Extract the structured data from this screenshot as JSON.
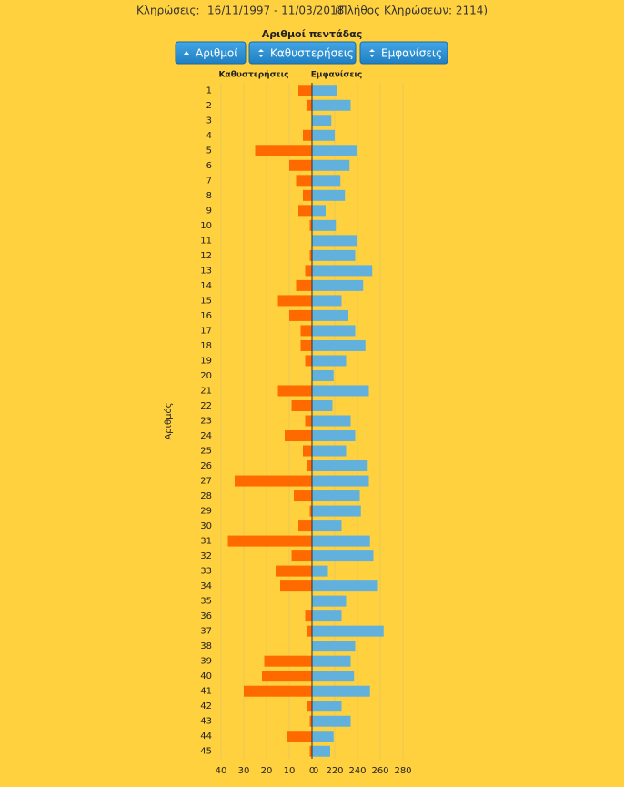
{
  "header": {
    "label": "Κληρώσεις:",
    "dates": "16/11/1997 - 11/03/2018",
    "count": "(Πλήθος Κληρώσεων: 2114)"
  },
  "buttons": [
    "Αριθμοί",
    "Καθυστερήσεις",
    "Εμφανίσεις"
  ],
  "chart_data": {
    "type": "butterfly_bar",
    "title": "Αριθμοί πεντάδας",
    "y_label": "Αριθμός",
    "categories": [
      "1",
      "2",
      "3",
      "4",
      "5",
      "6",
      "7",
      "8",
      "9",
      "10",
      "11",
      "12",
      "13",
      "14",
      "15",
      "16",
      "17",
      "18",
      "19",
      "20",
      "21",
      "22",
      "23",
      "24",
      "25",
      "26",
      "27",
      "28",
      "29",
      "30",
      "31",
      "32",
      "33",
      "34",
      "35",
      "36",
      "37",
      "38",
      "39",
      "40",
      "41",
      "42",
      "43",
      "44",
      "45"
    ],
    "series": [
      {
        "name": "Καθυστερήσεις",
        "color": "#ff6a00",
        "axis": "x",
        "values": [
          6,
          2,
          0,
          4,
          25,
          10,
          7,
          4,
          6,
          1,
          0,
          1,
          3,
          7,
          15,
          10,
          5,
          5,
          3,
          0,
          15,
          9,
          3,
          12,
          4,
          2,
          34,
          8,
          1,
          6,
          37,
          9,
          16,
          14,
          0,
          3,
          2,
          0,
          21,
          22,
          30,
          2,
          1,
          11,
          1
        ]
      },
      {
        "name": "Εμφανίσεις",
        "color": "#62b1dc",
        "axis": "x2",
        "values": [
          222,
          234,
          217,
          220,
          240,
          233,
          225,
          229,
          212,
          221,
          240,
          238,
          253,
          245,
          226,
          232,
          238,
          247,
          230,
          219,
          250,
          218,
          234,
          238,
          230,
          249,
          250,
          242,
          243,
          226,
          251,
          254,
          214,
          258,
          230,
          226,
          263,
          238,
          234,
          237,
          251,
          226,
          234,
          219,
          216
        ]
      }
    ],
    "xlim": [
      40,
      0
    ],
    "xticks": [
      40,
      30,
      20,
      10,
      0
    ],
    "x2lim": [
      200,
      280
    ],
    "x2ticks": [
      {
        "value": 200,
        "label": "0"
      },
      220,
      240,
      260,
      280
    ],
    "grid": true
  }
}
